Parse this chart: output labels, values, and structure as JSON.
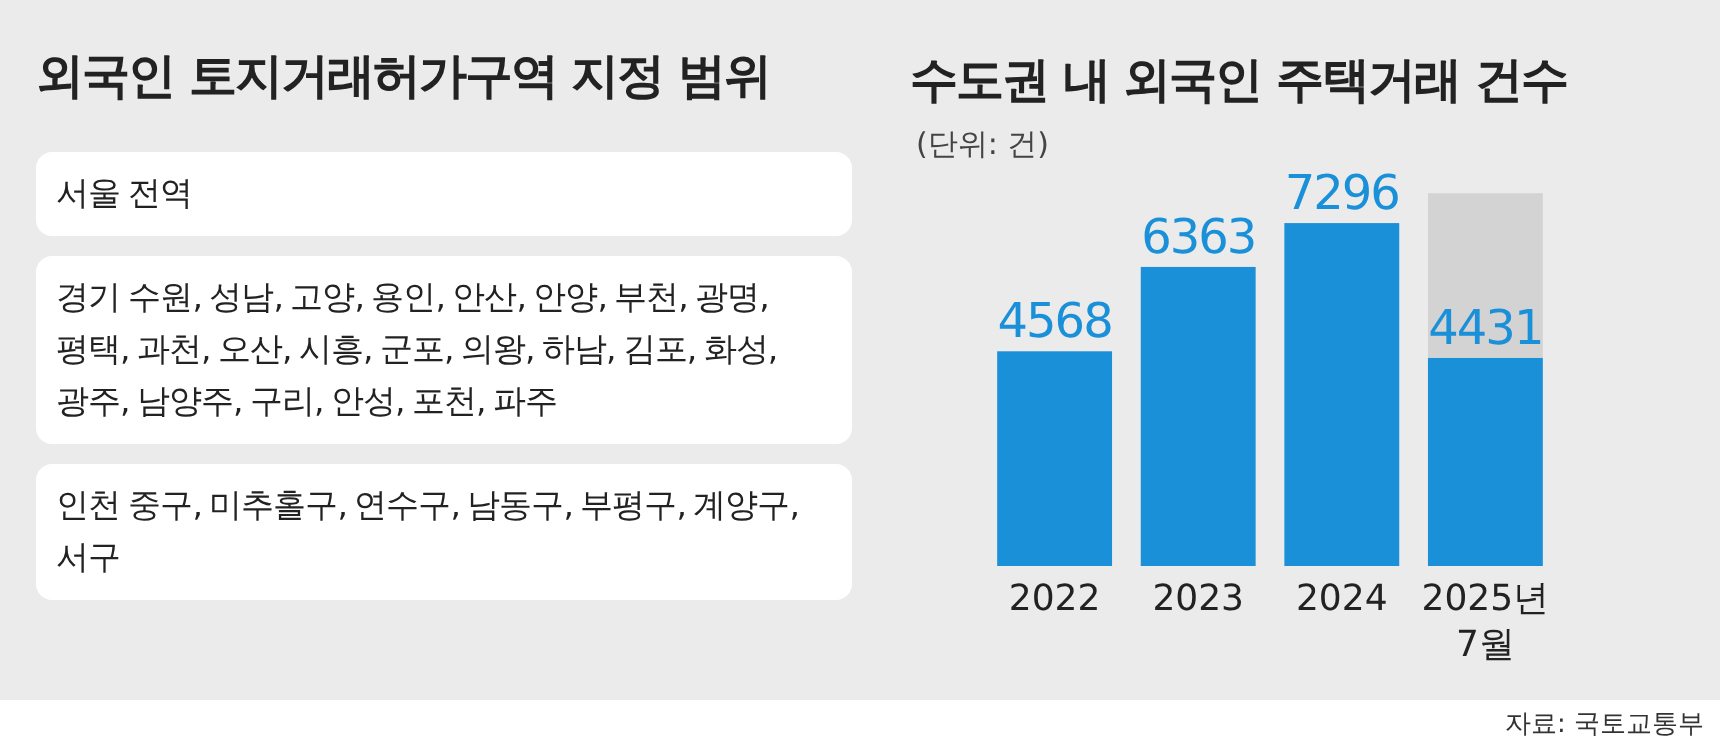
{
  "chart_data": [
    {
      "type": "other",
      "title": "외국인 토지거래허가구역 지정 범위",
      "annotations": [
        "서울 전역",
        "경기 수원, 성남, 고양, 용인, 안산, 안양, 부천, 광명, 평택, 과천, 오산, 시흥, 군포, 의왕, 하남, 김포, 화성, 광주, 남양주, 구리, 안성, 포천, 파주",
        "인천 중구, 미추홀구, 연수구, 남동구, 부평구, 계양구, 서구"
      ]
    },
    {
      "type": "bar",
      "title": "수도권 내 외국인 주택거래 건수",
      "subtitle": "(단위: 건)",
      "categories": [
        "2022",
        "2023",
        "2024",
        "2025년 7월"
      ],
      "stacked": true,
      "ylim": [
        0,
        8000
      ],
      "tick_labels": "x",
      "series": [
        {
          "color": "#1a90d9",
          "values": [
            4568,
            6363,
            7296,
            4431
          ],
          "value_labels": [
            "4568",
            "6363",
            "7296",
            "4431"
          ]
        },
        {
          "color": "#d3d3d3",
          "values": [
            null,
            null,
            null,
            3500
          ],
          "value_labels": [
            null,
            null,
            null,
            null
          ]
        }
      ],
      "annotations": [
        "자료: 국토교통부"
      ]
    }
  ]
}
